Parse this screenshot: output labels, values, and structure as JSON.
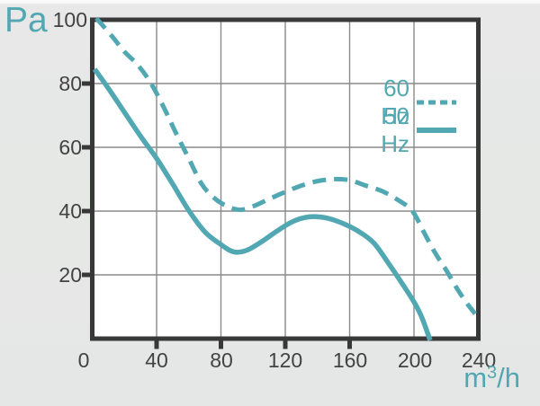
{
  "colors": {
    "accent_teal": "#52a8b2",
    "axis_dark": "#383838",
    "grid_gray": "#8a8a8a",
    "label_gray": "#424242",
    "plot_bg": "#ffffff",
    "page_bg": "#e6e7e6"
  },
  "y_axis_unit": "Pa",
  "x_axis_unit": {
    "base": "m",
    "sup": "3",
    "after": "/h"
  },
  "legend": {
    "items": [
      {
        "label": "60 Hz",
        "style": "dashed"
      },
      {
        "label": "50 Hz",
        "style": "solid"
      }
    ]
  },
  "chart_data": {
    "type": "line",
    "title": "",
    "xlabel": "m3/h",
    "ylabel": "Pa",
    "xlim": [
      0,
      240
    ],
    "ylim": [
      0,
      100
    ],
    "xticks": [
      0,
      40,
      80,
      120,
      160,
      200,
      240
    ],
    "yticks": [
      20,
      40,
      60,
      80,
      100
    ],
    "grid": true,
    "legend_position": "upper-right-inside",
    "tick_marks": {
      "x": [
        40,
        80,
        120,
        160
      ],
      "y": [
        20,
        40,
        60,
        80
      ]
    },
    "series": [
      {
        "name": "60 Hz",
        "line_style": "dashed",
        "points": [
          [
            2.5,
            100.5
          ],
          [
            12,
            95
          ],
          [
            20,
            90
          ],
          [
            28,
            86
          ],
          [
            36,
            80.5
          ],
          [
            44,
            73
          ],
          [
            52,
            64.5
          ],
          [
            60,
            56.5
          ],
          [
            68,
            48.5
          ],
          [
            76,
            44
          ],
          [
            84,
            41.5
          ],
          [
            92,
            40.4
          ],
          [
            100,
            41.5
          ],
          [
            110,
            43.8
          ],
          [
            120,
            46
          ],
          [
            130,
            48
          ],
          [
            140,
            49.4
          ],
          [
            150,
            50
          ],
          [
            160,
            49.7
          ],
          [
            170,
            48
          ],
          [
            180,
            46.3
          ],
          [
            190,
            43.5
          ],
          [
            199,
            40
          ],
          [
            206,
            33.5
          ],
          [
            213,
            27
          ],
          [
            220,
            21.5
          ],
          [
            227,
            15.5
          ],
          [
            233,
            11
          ],
          [
            238,
            7.8
          ]
        ]
      },
      {
        "name": "50 Hz",
        "line_style": "solid",
        "points": [
          [
            1.5,
            84.5
          ],
          [
            10,
            78.5
          ],
          [
            20,
            71
          ],
          [
            30,
            63.5
          ],
          [
            40,
            56.5
          ],
          [
            50,
            48.5
          ],
          [
            60,
            40.2
          ],
          [
            70,
            33.5
          ],
          [
            80,
            29.5
          ],
          [
            88,
            27.2
          ],
          [
            96,
            27.7
          ],
          [
            105,
            30.3
          ],
          [
            115,
            33.8
          ],
          [
            125,
            36.8
          ],
          [
            135,
            38.2
          ],
          [
            145,
            37.9
          ],
          [
            155,
            36.3
          ],
          [
            165,
            33.8
          ],
          [
            175,
            30
          ],
          [
            185,
            23
          ],
          [
            193,
            17
          ],
          [
            200,
            11.5
          ],
          [
            205,
            6.5
          ],
          [
            210,
            -0.5
          ]
        ]
      }
    ]
  }
}
